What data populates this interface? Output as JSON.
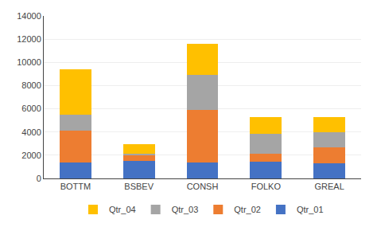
{
  "chart_data": {
    "type": "bar",
    "stacked": true,
    "categories": [
      "BOTTM",
      "BSBEV",
      "CONSH",
      "FOLKO",
      "GREAL"
    ],
    "series": [
      {
        "name": "Qtr_01",
        "color": "#4472c4",
        "values": [
          1347,
          1510,
          1390,
          1462,
          1310
        ]
      },
      {
        "name": "Qtr_02",
        "color": "#ed7d31",
        "values": [
          2751,
          530,
          4488,
          644,
          1368
        ]
      },
      {
        "name": "Qtr_03",
        "color": "#a5a5a5",
        "values": [
          1376,
          68,
          3028,
          1733,
          1323
        ]
      },
      {
        "name": "Qtr_04",
        "color": "#ffc000",
        "values": [
          3900,
          850,
          2697,
          1434,
          1274
        ]
      }
    ],
    "ylim": [
      0,
      14000
    ],
    "yticks": [
      0,
      2000,
      4000,
      6000,
      8000,
      10000,
      12000,
      14000
    ],
    "grid": true,
    "legend": "bottom"
  }
}
